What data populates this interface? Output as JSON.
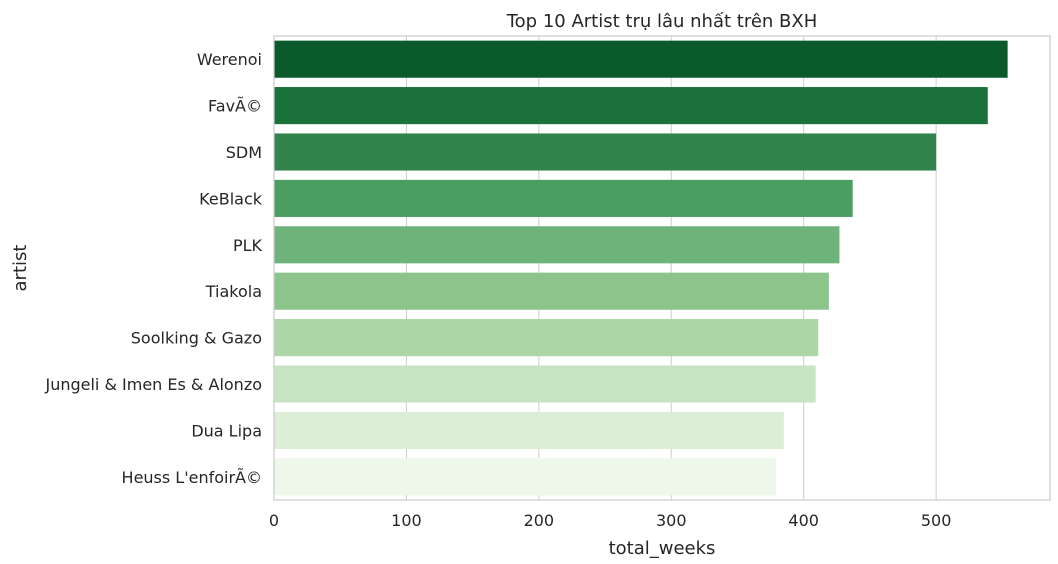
{
  "chart_data": {
    "type": "bar",
    "orientation": "horizontal",
    "title": "Top 10 Artist trụ lâu nhất trên BXH",
    "xlabel": "total_weeks",
    "ylabel": "artist",
    "categories": [
      "Werenoi",
      "FavÃ©",
      "SDM",
      "KeBlack",
      "PLK",
      "Tiakola",
      "Soolking & Gazo",
      "Jungeli & Imen Es & Alonzo",
      "Dua Lipa",
      "Heuss L'enfoirÃ©"
    ],
    "values": [
      554,
      539,
      500,
      437,
      427,
      419,
      411,
      409,
      385,
      379
    ],
    "xlim": [
      0,
      586
    ],
    "xticks": [
      "0",
      "100",
      "200",
      "300",
      "400",
      "500"
    ],
    "colors": [
      "#0b5a2c",
      "#1a713a",
      "#32834c",
      "#4c9e63",
      "#6db37a",
      "#8dc48c",
      "#acd6a6",
      "#c6e3c2",
      "#dcedd8",
      "#edf7ea"
    ],
    "grid": true,
    "legend": "none"
  }
}
